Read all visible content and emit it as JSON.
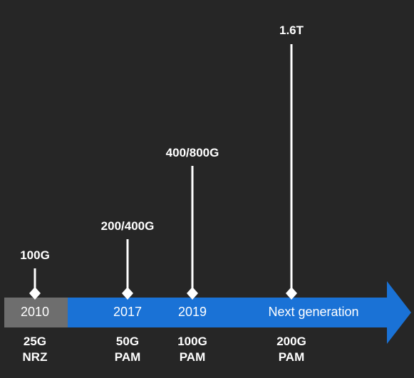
{
  "colors": {
    "background": "#262626",
    "arrow": "#1a72d6",
    "past_segment": "#6e6e6e",
    "text": "#ffffff"
  },
  "milestones": [
    {
      "speed": "100G",
      "year": "2010",
      "line1": "25G",
      "line2": "NRZ"
    },
    {
      "speed": "200/400G",
      "year": "2017",
      "line1": "50G",
      "line2": "PAM"
    },
    {
      "speed": "400/800G",
      "year": "2019",
      "line1": "100G",
      "line2": "PAM"
    },
    {
      "speed": "1.6T",
      "year": "Next generation",
      "line1": "200G",
      "line2": "PAM"
    }
  ]
}
